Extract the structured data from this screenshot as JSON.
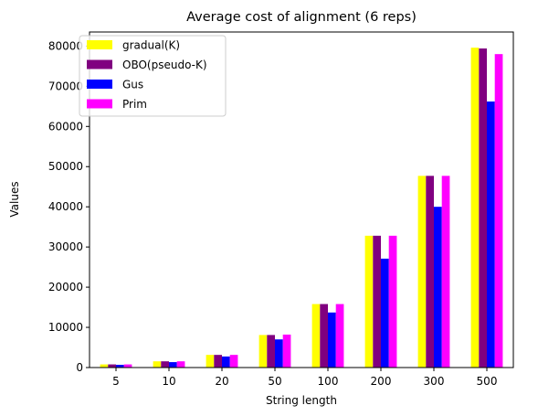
{
  "chart_data": {
    "type": "bar",
    "title": "Average cost of alignment (6 reps)",
    "xlabel": "String length",
    "ylabel": "Values",
    "categories": [
      "5",
      "10",
      "20",
      "50",
      "100",
      "200",
      "300",
      "500"
    ],
    "ylim": [
      0,
      83500
    ],
    "yticks": [
      0,
      10000,
      20000,
      30000,
      40000,
      50000,
      60000,
      70000,
      80000
    ],
    "legend_position": "top-left",
    "grid": false,
    "series": [
      {
        "name": "gradual(K)",
        "color": "#ffff00",
        "values": [
          780,
          1550,
          3150,
          8100,
          15800,
          32800,
          47700,
          79600
        ]
      },
      {
        "name": "OBO(pseudo-K)",
        "color": "#800080",
        "values": [
          780,
          1550,
          3150,
          8100,
          15800,
          32800,
          47700,
          79400
        ]
      },
      {
        "name": "Gus",
        "color": "#0000ff",
        "values": [
          680,
          1350,
          2750,
          7000,
          13700,
          27100,
          40000,
          66200
        ]
      },
      {
        "name": "Prim",
        "color": "#ff00ff",
        "values": [
          780,
          1550,
          3150,
          8200,
          15800,
          32800,
          47700,
          78000
        ]
      }
    ]
  }
}
